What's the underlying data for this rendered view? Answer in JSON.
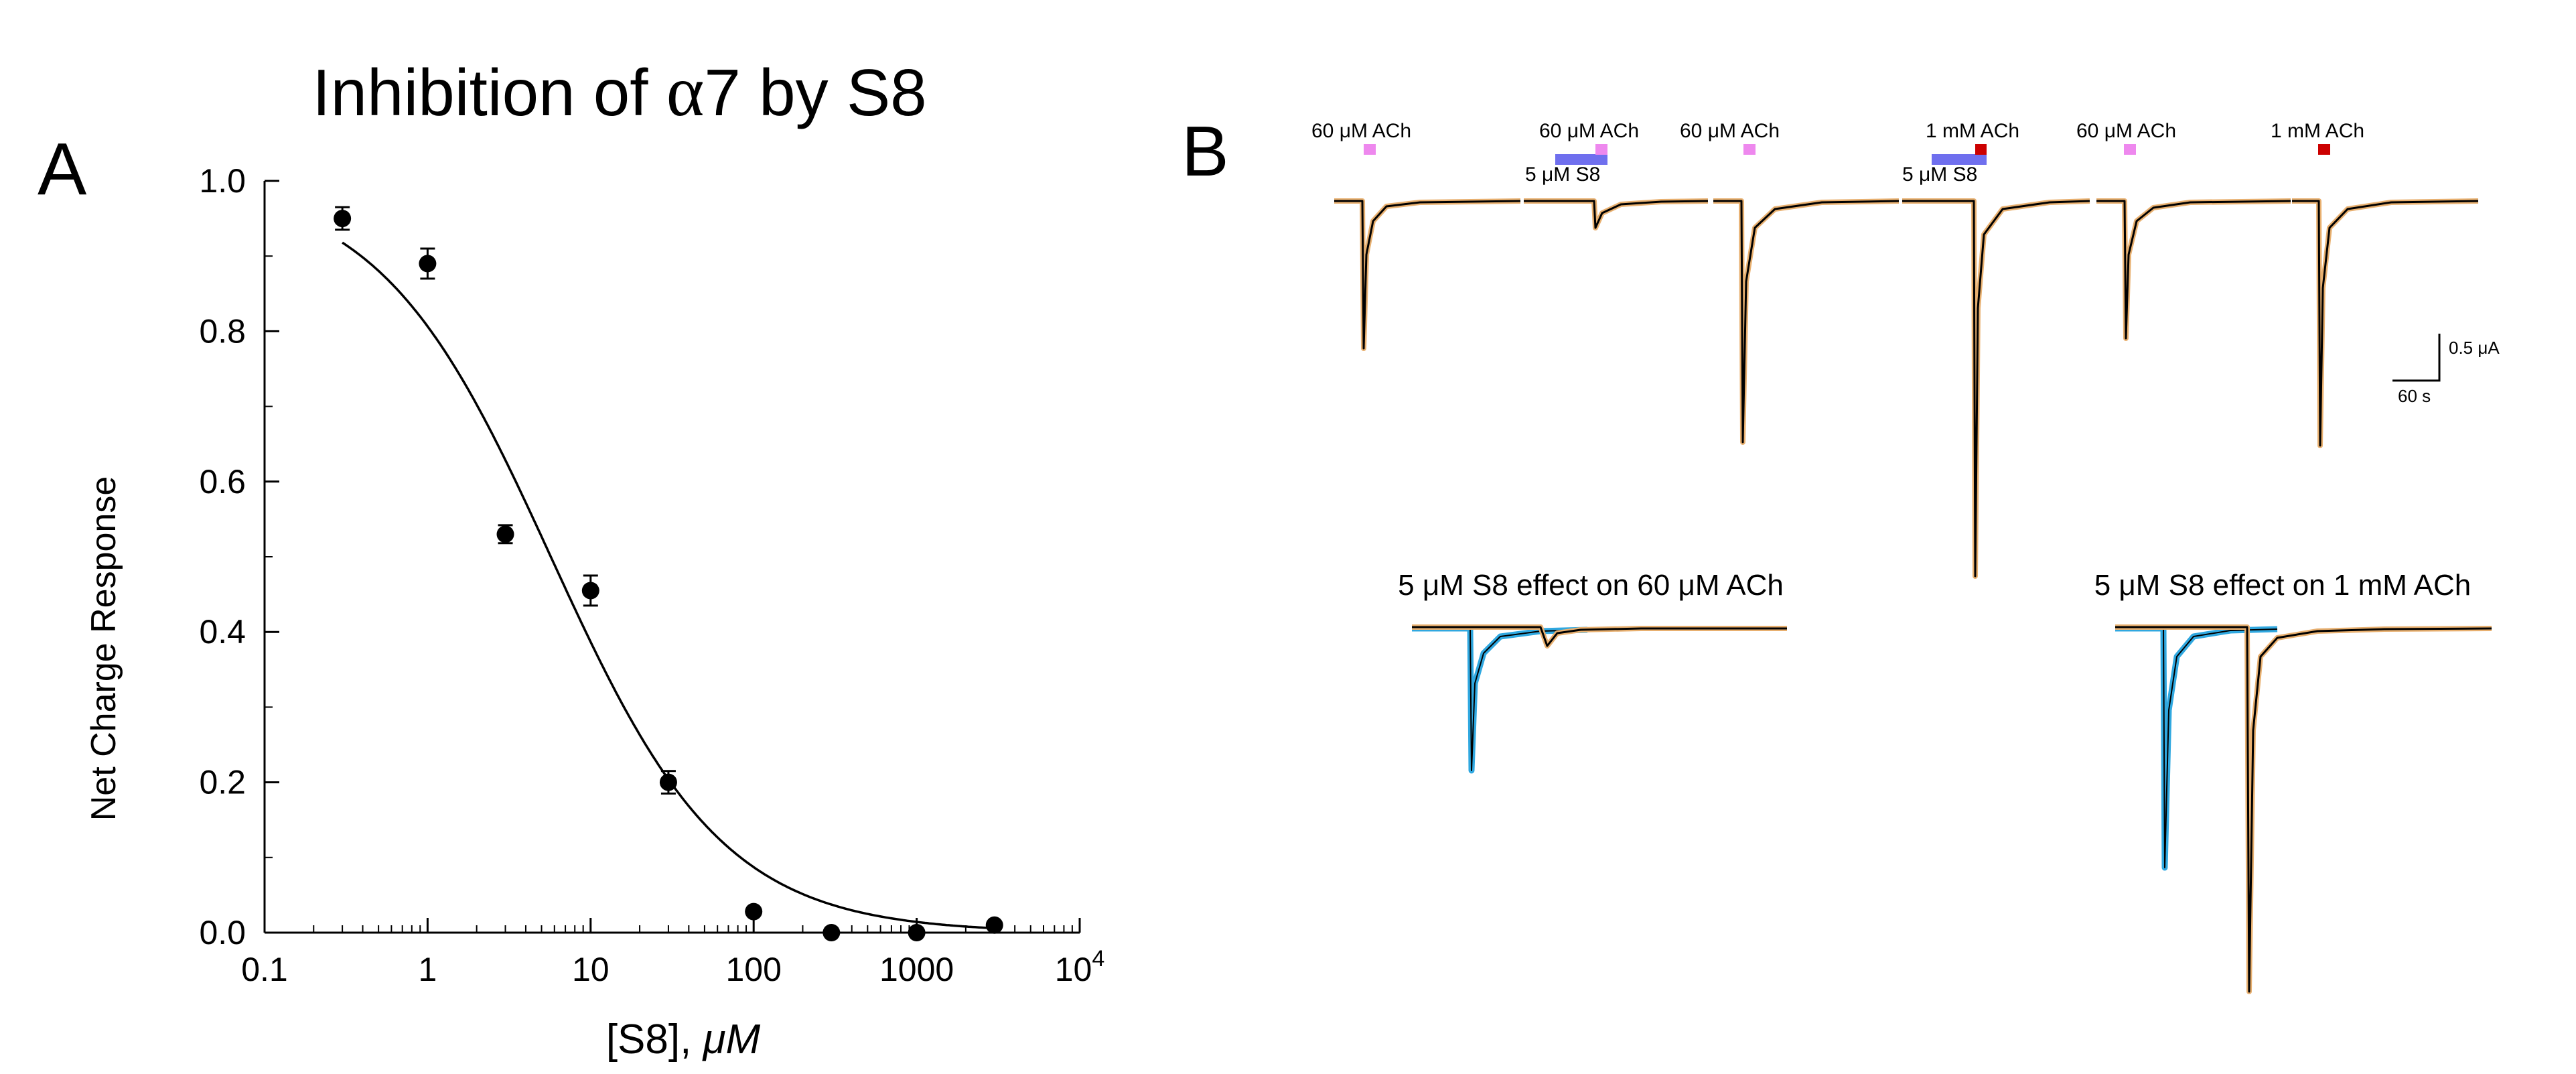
{
  "panel_a": {
    "letter": "A",
    "title_prefix": "Inhibition of ",
    "title_alpha": "α",
    "title_suffix": "7 by S8",
    "chart_data": {
      "type": "scatter",
      "title": "Inhibition of α7 by S8",
      "xlabel_text": "[S8], ",
      "xlabel_unit": "μM",
      "ylabel": "Net Charge Response",
      "xscale": "log",
      "xlim": [
        0.1,
        10000
      ],
      "ylim": [
        0,
        1.0
      ],
      "x_tick_labels": [
        "0.1",
        "1",
        "10",
        "100",
        "1000",
        "10"
      ],
      "x_last_tick_exponent": "4",
      "y_tick_labels": [
        "0.0",
        "0.2",
        "0.4",
        "0.6",
        "0.8",
        "1.0"
      ],
      "series": [
        {
          "name": "data",
          "x": [
            0.3,
            1,
            3,
            10,
            30,
            100,
            300,
            1000,
            3000
          ],
          "y": [
            0.95,
            0.89,
            0.53,
            0.455,
            0.2,
            0.028,
            0.0,
            0.0,
            0.01
          ],
          "yerr": [
            0.015,
            0.02,
            0.012,
            0.02,
            0.015,
            0,
            0,
            0,
            0
          ]
        }
      ],
      "fit": {
        "type": "hill-inhibition",
        "ic50": 5.7,
        "hill": 0.82,
        "top": 1.0
      }
    }
  },
  "panel_b": {
    "letter": "B",
    "labels": {
      "ach60_1": "60 μM ACh",
      "ach60_2": "60 μM ACh",
      "s8_1": "5 μM S8",
      "ach60_3": "60 μM ACh",
      "ach1_1": "1 mM ACh",
      "s8_2": "5 μM S8",
      "ach60_4": "60 μM ACh",
      "ach1_2": "1 mM ACh"
    },
    "scale_y": "0.5 μA",
    "scale_x": "60 s",
    "bottom_title_left": "5 μM S8 effect on 60 μM ACh",
    "bottom_title_right": "5 μM S8 effect on 1 mM ACh",
    "colors": {
      "ach60_bar": "#ee88ee",
      "ach1_bar": "#cc0000",
      "s8_bar": "#6f6fee",
      "trace": "#000000",
      "trace_error_orange": "#e8b070",
      "trace_error_blue": "#30a8e0"
    }
  }
}
